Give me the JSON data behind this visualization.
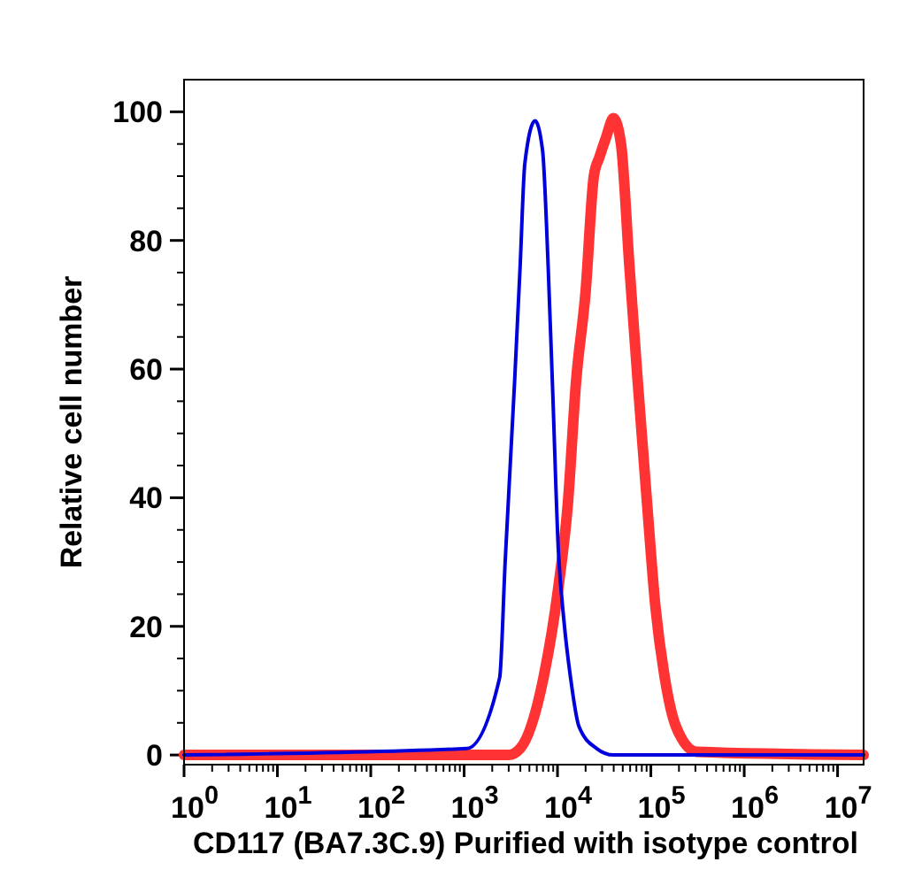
{
  "chart_data": {
    "type": "line",
    "xlabel": "CD117 (BA7.3C.9) Purified with isotype control",
    "ylabel": "Relative cell number",
    "log": "x",
    "xlim": [
      1,
      19000000
    ],
    "ylim": [
      -1.5,
      105
    ],
    "xticks": [
      {
        "value": 1,
        "label": "10$^{0}$"
      },
      {
        "value": 2,
        "label": null
      },
      {
        "value": 3,
        "label": null
      },
      {
        "value": 4,
        "label": null
      },
      {
        "value": 5,
        "label": null
      },
      {
        "value": 6,
        "label": null
      },
      {
        "value": 7,
        "label": null
      },
      {
        "value": 8,
        "label": null
      },
      {
        "value": 9,
        "label": null
      },
      {
        "value": 10,
        "label": "10$^{1}$"
      },
      {
        "value": 20,
        "label": null
      },
      {
        "value": 30,
        "label": null
      },
      {
        "value": 40,
        "label": null
      },
      {
        "value": 50,
        "label": null
      },
      {
        "value": 60,
        "label": null
      },
      {
        "value": 70,
        "label": null
      },
      {
        "value": 80,
        "label": null
      },
      {
        "value": 90,
        "label": null
      },
      {
        "value": 100,
        "label": "10$^{2}$"
      },
      {
        "value": 200,
        "label": null
      },
      {
        "value": 300,
        "label": null
      },
      {
        "value": 400,
        "label": null
      },
      {
        "value": 500,
        "label": null
      },
      {
        "value": 600,
        "label": null
      },
      {
        "value": 700,
        "label": null
      },
      {
        "value": 800,
        "label": null
      },
      {
        "value": 900,
        "label": null
      },
      {
        "value": 1000,
        "label": "10$^{3}$"
      },
      {
        "value": 2000,
        "label": null
      },
      {
        "value": 3000,
        "label": null
      },
      {
        "value": 4000,
        "label": null
      },
      {
        "value": 5000,
        "label": null
      },
      {
        "value": 6000,
        "label": null
      },
      {
        "value": 7000,
        "label": null
      },
      {
        "value": 8000,
        "label": null
      },
      {
        "value": 9000,
        "label": null
      },
      {
        "value": 10000,
        "label": "10$^{4}$"
      },
      {
        "value": 20000,
        "label": null
      },
      {
        "value": 30000,
        "label": null
      },
      {
        "value": 40000,
        "label": null
      },
      {
        "value": 50000,
        "label": null
      },
      {
        "value": 60000,
        "label": null
      },
      {
        "value": 70000,
        "label": null
      },
      {
        "value": 80000,
        "label": null
      },
      {
        "value": 90000,
        "label": null
      },
      {
        "value": 100000,
        "label": "10$^{5}$"
      },
      {
        "value": 200000,
        "label": null
      },
      {
        "value": 300000,
        "label": null
      },
      {
        "value": 400000,
        "label": null
      },
      {
        "value": 500000,
        "label": null
      },
      {
        "value": 600000,
        "label": null
      },
      {
        "value": 700000,
        "label": null
      },
      {
        "value": 800000,
        "label": null
      },
      {
        "value": 900000,
        "label": null
      },
      {
        "value": 1000000,
        "label": "10$^{6}$"
      },
      {
        "value": 2000000,
        "label": null
      },
      {
        "value": 3000000,
        "label": null
      },
      {
        "value": 4000000,
        "label": null
      },
      {
        "value": 5000000,
        "label": null
      },
      {
        "value": 6000000,
        "label": null
      },
      {
        "value": 7000000,
        "label": null
      },
      {
        "value": 8000000,
        "label": null
      },
      {
        "value": 9000000,
        "label": null
      },
      {
        "value": 10000000,
        "label": "10$^{7}$"
      }
    ],
    "yticks": [
      0,
      {
        "value": 5,
        "label": null
      },
      {
        "value": 10,
        "label": null
      },
      {
        "value": 15,
        "label": null
      },
      20,
      {
        "value": 25,
        "label": null
      },
      {
        "value": 30,
        "label": null
      },
      {
        "value": 35,
        "label": null
      },
      40,
      {
        "value": 45,
        "label": null
      },
      {
        "value": 50,
        "label": null
      },
      {
        "value": 55,
        "label": null
      },
      60,
      {
        "value": 65,
        "label": null
      },
      {
        "value": 70,
        "label": null
      },
      {
        "value": 75,
        "label": null
      },
      80,
      {
        "value": 85,
        "label": null
      },
      {
        "value": 90,
        "label": null
      },
      {
        "value": 95,
        "label": null
      },
      100
    ],
    "grid": false,
    "marker": "none",
    "line_style": "solid",
    "series": [
      {
        "color": "#ff3333",
        "x": [
          1,
          3000,
          3980,
          7080,
          10200,
          12900,
          15800,
          20000,
          24500,
          28200,
          33100,
          39800,
          47900,
          58900,
          72400,
          91200,
          112000,
          141000,
          186000,
          309000,
          19000000
        ],
        "values": [
          0,
          0,
          1,
          12,
          26,
          39,
          58,
          72,
          90,
          93,
          96,
          99,
          95,
          76,
          58,
          39,
          23,
          12,
          4.4,
          0.5,
          0
        ]
      },
      {
        "color": "#0000dd",
        "x": [
          1,
          1070,
          2400,
          2750,
          3470,
          3980,
          4470,
          5750,
          6920,
          7940,
          8910,
          10200,
          11700,
          13800,
          17000,
          26300,
          39800,
          19000000
        ],
        "values": [
          0,
          1,
          12,
          30,
          58,
          76,
          92,
          98.6,
          94,
          76,
          56,
          32,
          21,
          12,
          4.4,
          1,
          0,
          0
        ]
      }
    ]
  }
}
